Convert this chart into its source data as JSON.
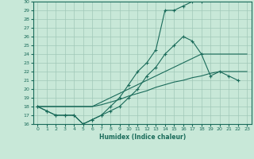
{
  "title": "",
  "xlabel": "Humidex (Indice chaleur)",
  "xlim": [
    -0.5,
    23.5
  ],
  "ylim": [
    16,
    30
  ],
  "xticks": [
    0,
    1,
    2,
    3,
    4,
    5,
    6,
    7,
    8,
    9,
    10,
    11,
    12,
    13,
    14,
    15,
    16,
    17,
    18,
    19,
    20,
    21,
    22,
    23
  ],
  "yticks": [
    16,
    17,
    18,
    19,
    20,
    21,
    22,
    23,
    24,
    25,
    26,
    27,
    28,
    29,
    30
  ],
  "background_color": "#c8e8d8",
  "line_color": "#1a6b5a",
  "grid_color": "#a0c8b8",
  "series": [
    {
      "x": [
        0,
        1,
        2,
        3,
        4,
        5,
        6,
        7,
        8,
        9,
        10,
        11,
        12,
        13,
        14,
        15,
        16,
        17,
        18,
        19,
        20,
        21,
        22,
        23
      ],
      "y": [
        18,
        17.5,
        17,
        17,
        17,
        16,
        16.5,
        17,
        18,
        19,
        20.5,
        22,
        23,
        24.5,
        29,
        29,
        29.5,
        30,
        30,
        null,
        null,
        null,
        null,
        null
      ],
      "has_markers": true
    },
    {
      "x": [
        0,
        1,
        2,
        3,
        4,
        5,
        6,
        7,
        8,
        9,
        10,
        11,
        12,
        13,
        14,
        15,
        16,
        17,
        18,
        19,
        20,
        21,
        22,
        23
      ],
      "y": [
        18,
        17.5,
        17,
        17,
        17,
        16,
        16.5,
        17,
        17.5,
        18,
        19,
        20,
        21.5,
        22.5,
        24,
        25,
        26,
        25.5,
        24,
        21.5,
        22,
        21.5,
        21,
        null
      ],
      "has_markers": true
    },
    {
      "x": [
        0,
        1,
        2,
        3,
        4,
        5,
        6,
        7,
        8,
        9,
        10,
        11,
        12,
        13,
        14,
        15,
        16,
        17,
        18,
        19,
        20,
        21,
        22,
        23
      ],
      "y": [
        18,
        18,
        18,
        18,
        18,
        18,
        18,
        18.5,
        19,
        19.5,
        20,
        20.5,
        21,
        21.5,
        22,
        22.5,
        23,
        23.5,
        24,
        24,
        24,
        24,
        24,
        24
      ],
      "has_markers": false
    },
    {
      "x": [
        0,
        1,
        2,
        3,
        4,
        5,
        6,
        7,
        8,
        9,
        10,
        11,
        12,
        13,
        14,
        15,
        16,
        17,
        18,
        19,
        20,
        21,
        22,
        23
      ],
      "y": [
        18,
        18,
        18,
        18,
        18,
        18,
        18,
        18.2,
        18.5,
        18.8,
        19.2,
        19.5,
        19.8,
        20.2,
        20.5,
        20.8,
        21,
        21.3,
        21.5,
        21.8,
        22,
        22,
        22,
        22
      ],
      "has_markers": false
    }
  ]
}
